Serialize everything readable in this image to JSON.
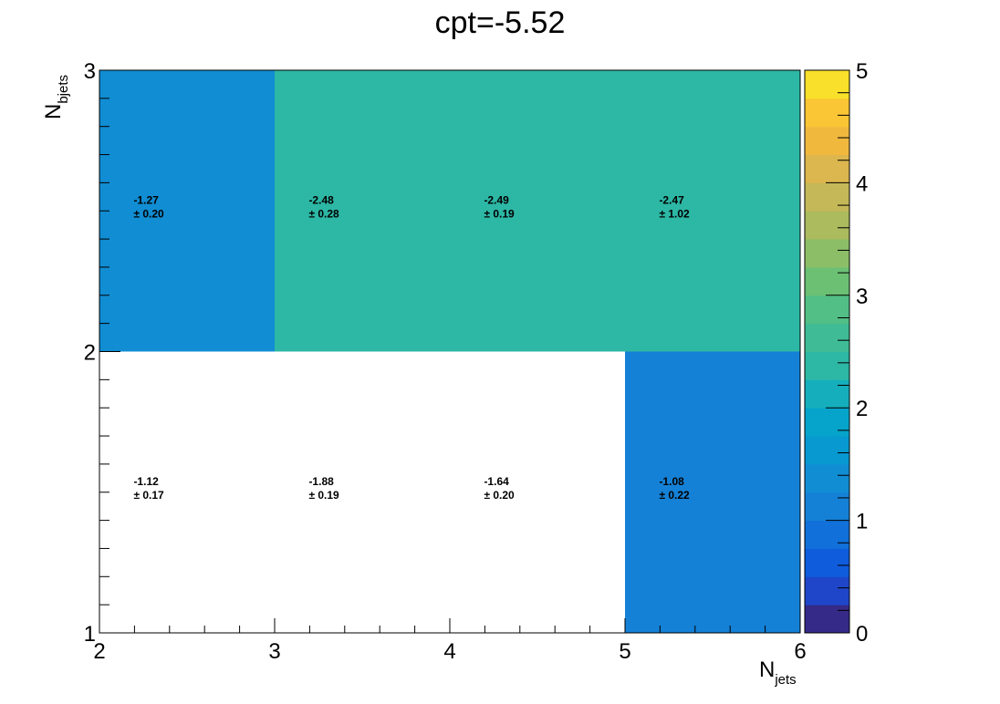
{
  "chart_data": {
    "type": "heatmap",
    "title": "cpt=-5.52",
    "xlabel_main": "N",
    "xlabel_sub": "jets",
    "ylabel_main": "N",
    "ylabel_sub": "bjets",
    "x_edges": [
      2,
      3,
      4,
      5,
      6
    ],
    "y_edges": [
      1,
      2,
      3
    ],
    "x_ticks": [
      "2",
      "3",
      "4",
      "5",
      "6"
    ],
    "y_ticks": [
      "1",
      "2",
      "3"
    ],
    "zlim": [
      0,
      5
    ],
    "z_ticks": [
      "0",
      "1",
      "2",
      "3",
      "4",
      "5"
    ],
    "colorbar_levels": 20,
    "cells": [
      {
        "x": 2,
        "y": 1,
        "value": -1.12,
        "label": "-1.12",
        "error": "± 0.17",
        "color": "#ffffff"
      },
      {
        "x": 3,
        "y": 1,
        "value": -1.88,
        "label": "-1.88",
        "error": "± 0.19",
        "color": "#ffffff"
      },
      {
        "x": 4,
        "y": 1,
        "value": -1.64,
        "label": "-1.64",
        "error": "± 0.20",
        "color": "#ffffff"
      },
      {
        "x": 5,
        "y": 1,
        "value": -1.08,
        "label": "-1.08",
        "error": "± 0.22",
        "color": "#1581d6"
      },
      {
        "x": 2,
        "y": 2,
        "value": -1.27,
        "label": "-1.27",
        "error": "± 0.20",
        "color": "#118dd3"
      },
      {
        "x": 3,
        "y": 2,
        "value": -2.48,
        "label": "-2.48",
        "error": "± 0.28",
        "color": "#2db7a5"
      },
      {
        "x": 4,
        "y": 2,
        "value": -2.49,
        "label": "-2.49",
        "error": "± 0.19",
        "color": "#2db7a5"
      },
      {
        "x": 5,
        "y": 2,
        "value": -2.47,
        "label": "-2.47",
        "error": "± 1.02",
        "color": "#2db7a5"
      }
    ],
    "palette": [
      "#352a87",
      "#1f46c9",
      "#0f5cdd",
      "#1170d9",
      "#1581d6",
      "#118dd3",
      "#0799d0",
      "#06a4ca",
      "#15aebc",
      "#2db7a5",
      "#3fbc95",
      "#52bf86",
      "#6cc074",
      "#8cbe68",
      "#abbb5e",
      "#c5b858",
      "#dcb64e",
      "#f0b93e",
      "#fac635",
      "#f9e02a",
      "#f9fb0e"
    ]
  }
}
